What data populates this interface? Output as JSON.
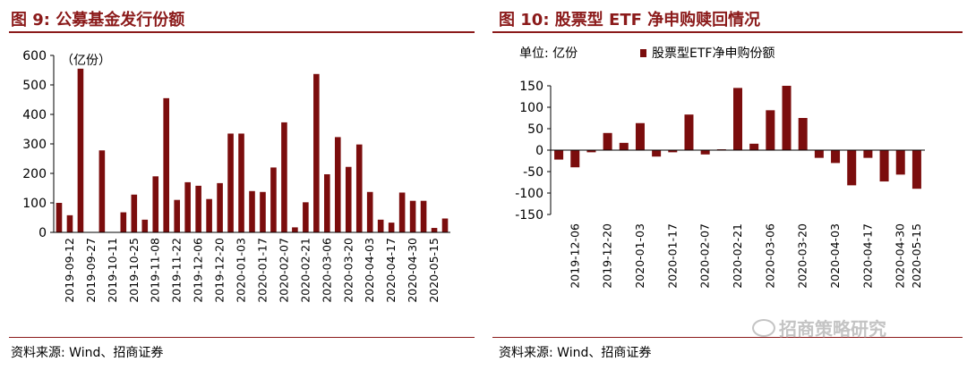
{
  "left_panel": {
    "title": "图 9:  公募基金发行份额",
    "source": "资料来源:  Wind、招商证券"
  },
  "right_panel": {
    "title": "图 10:  股票型 ETF 净申购赎回情况",
    "source": "资料来源:  Wind、招商证券"
  },
  "watermark": "招商策略研究",
  "colors": {
    "bar": "#7b0d0d",
    "title": "#8b1a1a",
    "axis": "#000000"
  },
  "chart_data": [
    {
      "type": "bar",
      "title": "公募基金发行份额",
      "unit_label": "（亿份）",
      "ylim": [
        0,
        600
      ],
      "yticks": [
        0,
        100,
        200,
        300,
        400,
        500,
        600
      ],
      "x_tick_labels": [
        "2019-09-12",
        "2019-09-27",
        "2019-10-11",
        "2019-10-25",
        "2019-11-08",
        "2019-11-22",
        "2019-12-06",
        "2019-12-20",
        "2020-01-03",
        "2020-01-17",
        "2020-02-07",
        "2020-02-21",
        "2020-03-06",
        "2020-03-20",
        "2020-04-03",
        "2020-04-17",
        "2020-04-30",
        "2020-05-15"
      ],
      "values": [
        100,
        58,
        555,
        0,
        278,
        0,
        68,
        128,
        43,
        190,
        455,
        110,
        170,
        158,
        113,
        167,
        335,
        335,
        140,
        137,
        220,
        373,
        17,
        102,
        537,
        197,
        323,
        222,
        298,
        137,
        43,
        33,
        135,
        107,
        107,
        15,
        47
      ]
    },
    {
      "type": "bar",
      "title": "股票型 ETF 净申购赎回情况",
      "unit_label": "单位:  亿份",
      "legend": "股票型ETF净申购份额",
      "ylim": [
        -150,
        150
      ],
      "yticks": [
        -150,
        -100,
        -50,
        0,
        50,
        100,
        150
      ],
      "x_tick_labels": [
        "2019-12-06",
        "2019-12-20",
        "2020-01-03",
        "2020-01-17",
        "2020-02-07",
        "2020-02-21",
        "2020-03-06",
        "2020-03-20",
        "2020-04-03",
        "2020-04-17",
        "2020-04-30",
        "2020-05-15"
      ],
      "values": [
        -22,
        -40,
        -5,
        40,
        17,
        63,
        -15,
        -5,
        83,
        -10,
        2,
        145,
        15,
        93,
        150,
        75,
        -18,
        -30,
        -82,
        -18,
        -73,
        -57,
        -90
      ]
    }
  ]
}
